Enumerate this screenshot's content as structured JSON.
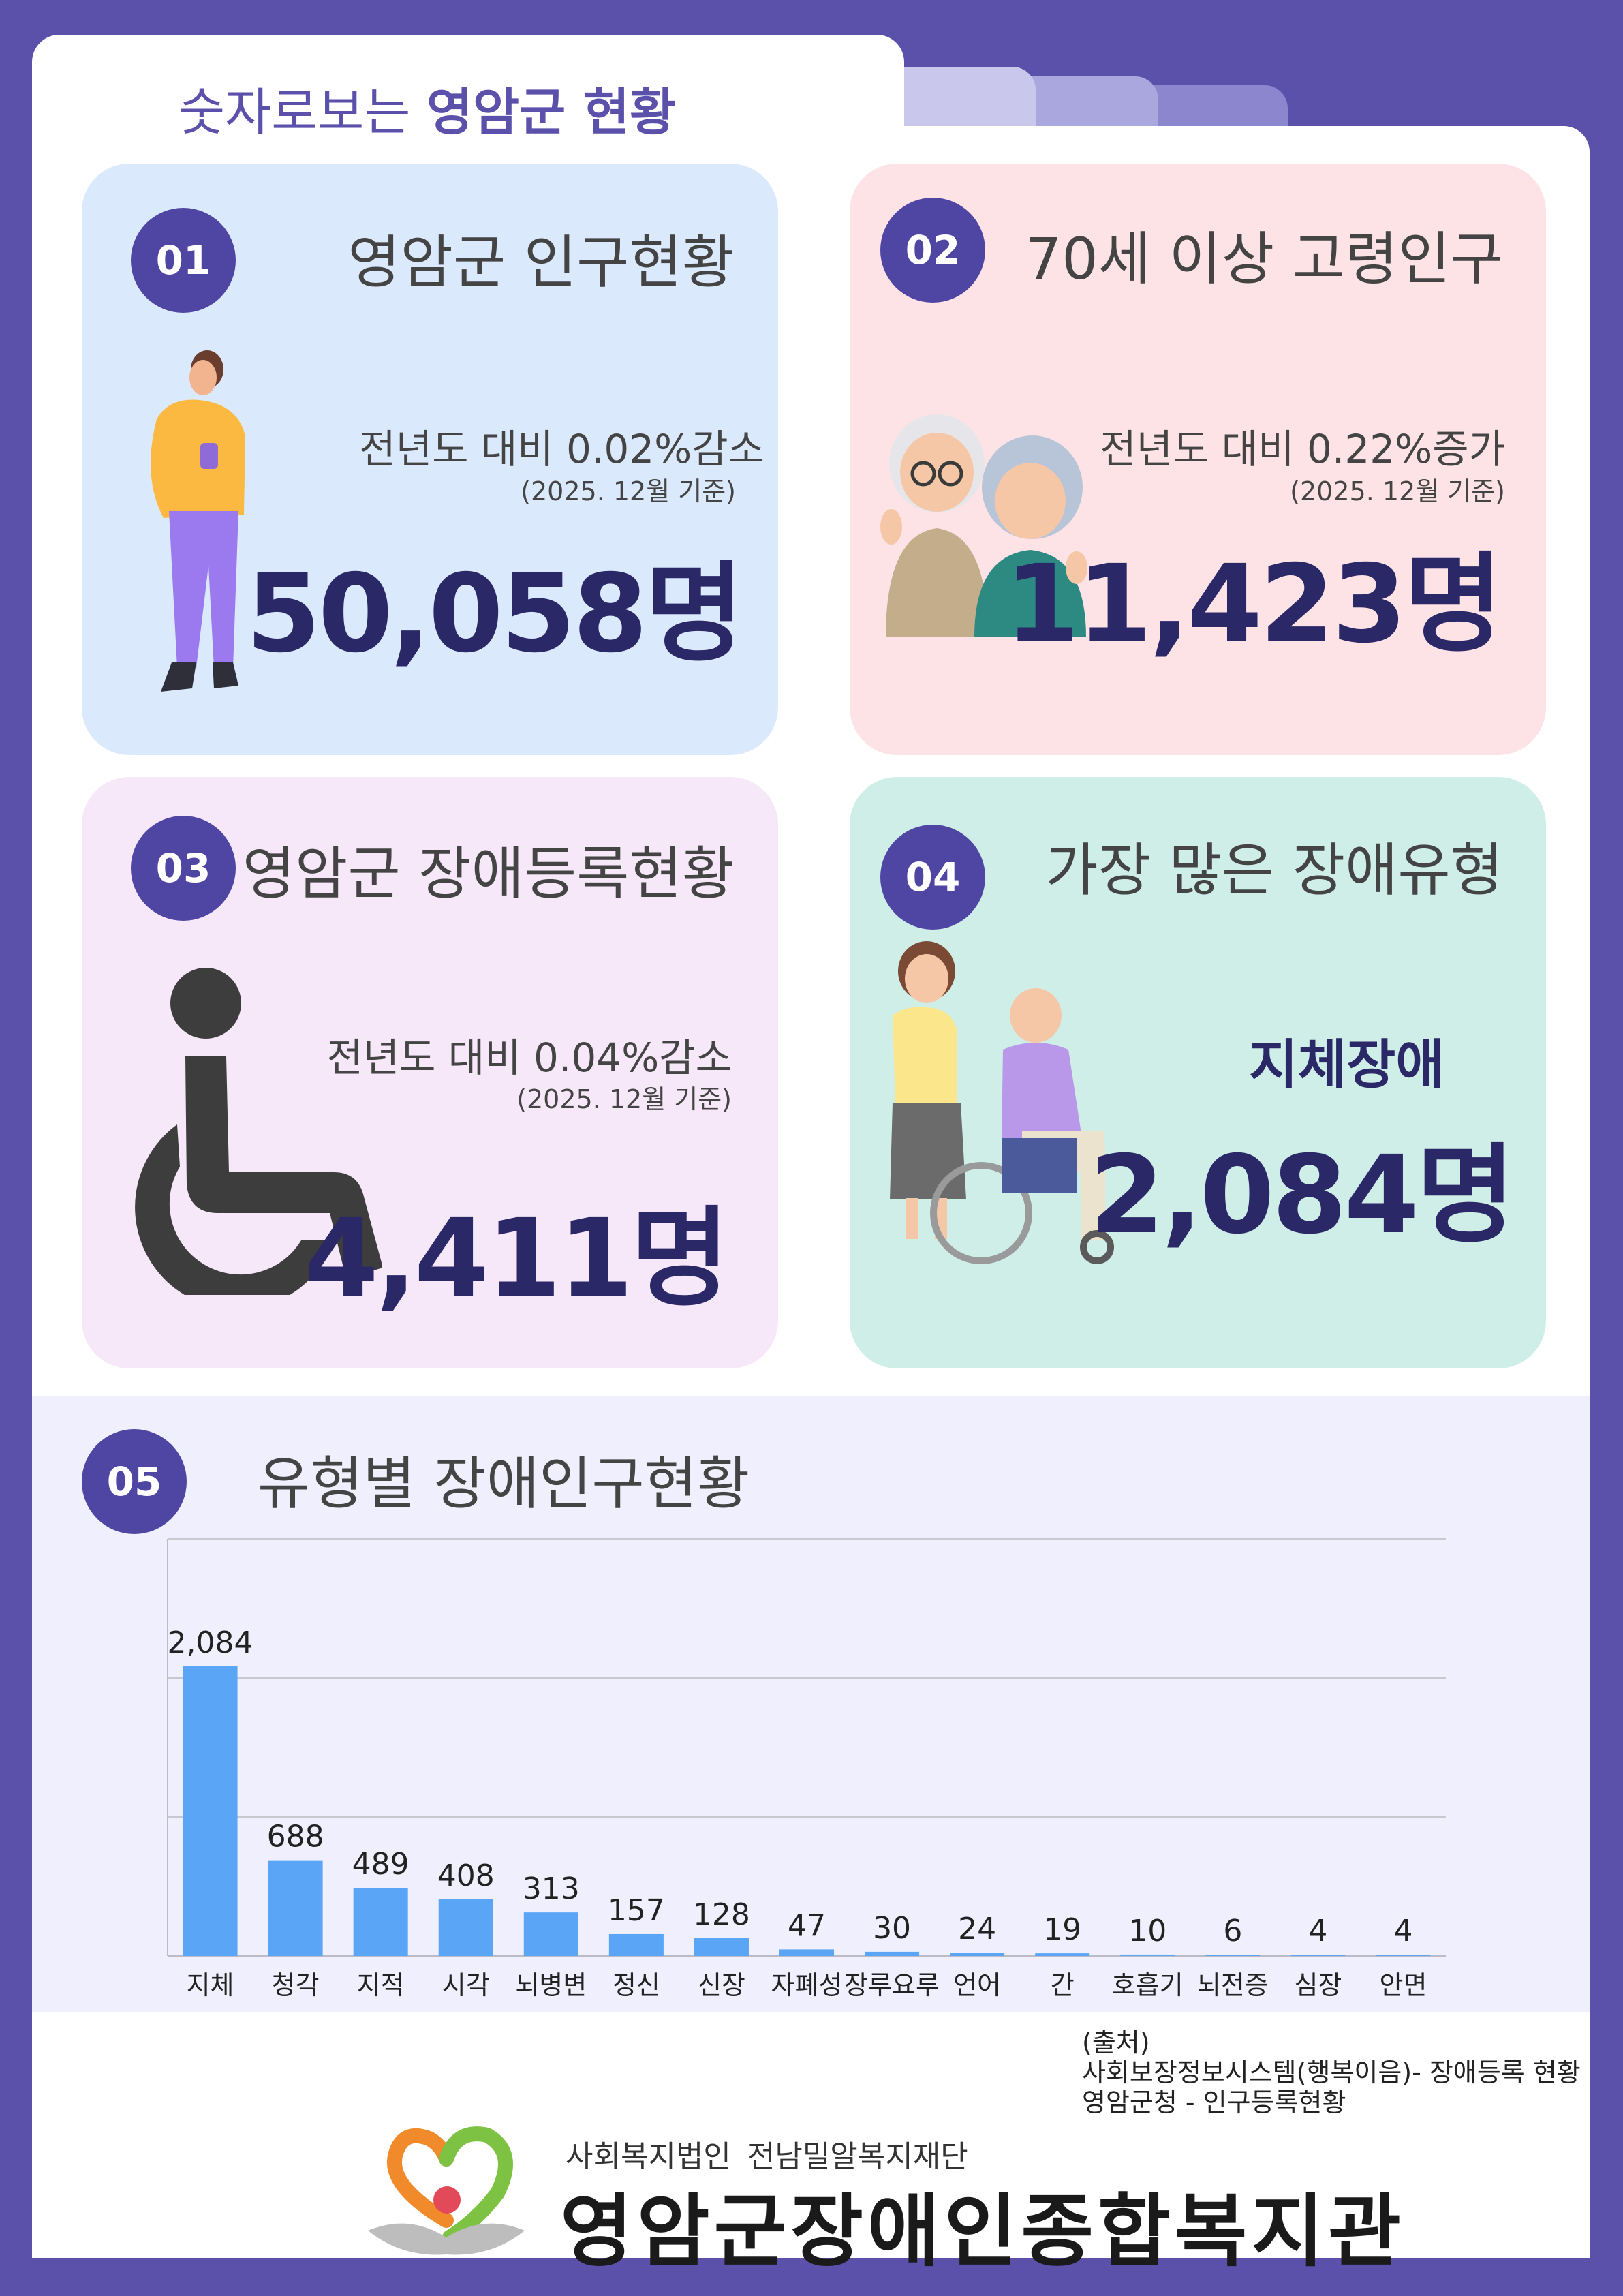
{
  "header": {
    "prefix": "숫자로보는 ",
    "highlight": "영암군 현황"
  },
  "cards": [
    {
      "num": "01",
      "title": "영암군 인구현황",
      "compare": "전년도 대비 0.02%감소",
      "basis": "(2025. 12월 기준)",
      "value": "50,058명"
    },
    {
      "num": "02",
      "title": "70세 이상 고령인구",
      "compare": "전년도 대비 0.22%증가",
      "basis": "(2025. 12월 기준)",
      "value": "11,423명"
    },
    {
      "num": "03",
      "title": "영암군 장애등록현황",
      "compare": "전년도 대비 0.04%감소",
      "basis": "(2025. 12월 기준)",
      "value": "4,411명"
    },
    {
      "num": "04",
      "title": "가장 많은 장애유형",
      "type_label": "지체장애",
      "value": "2,084명"
    }
  ],
  "section5": {
    "num": "05",
    "title": "유형별 장애인구현황"
  },
  "chart_data": {
    "type": "bar",
    "categories": [
      "지체",
      "청각",
      "지적",
      "시각",
      "뇌병변",
      "정신",
      "신장",
      "자폐성",
      "장루요루",
      "언어",
      "간",
      "호흡기",
      "뇌전증",
      "심장",
      "안면"
    ],
    "values": [
      2084,
      688,
      489,
      408,
      313,
      157,
      128,
      47,
      30,
      24,
      19,
      10,
      6,
      4,
      4
    ],
    "value_labels": [
      "2,084",
      "688",
      "489",
      "408",
      "313",
      "157",
      "128",
      "47",
      "30",
      "24",
      "19",
      "10",
      "6",
      "4",
      "4"
    ],
    "ylim": [
      0,
      3000
    ],
    "grid": true,
    "bar_color": "#5aa5f5"
  },
  "source": {
    "heading": "(출처)",
    "line1": "사회보장정보시스템(행복이음)- 장애등록 현황",
    "line2": "영암군청 - 인구등록현황"
  },
  "footer": {
    "org_sub": "사회복지법인  전남밀알복지재단",
    "org_main": "영암군장애인종합복지관"
  },
  "colors": {
    "frame": "#5b51ab",
    "badge": "#4f46a3",
    "value_text": "#2b2868",
    "card1": "#dbe9fc",
    "card2": "#fde3e5",
    "card3": "#f6e8f8",
    "card4": "#cfeee7",
    "chart_bg": "#efeffd"
  }
}
